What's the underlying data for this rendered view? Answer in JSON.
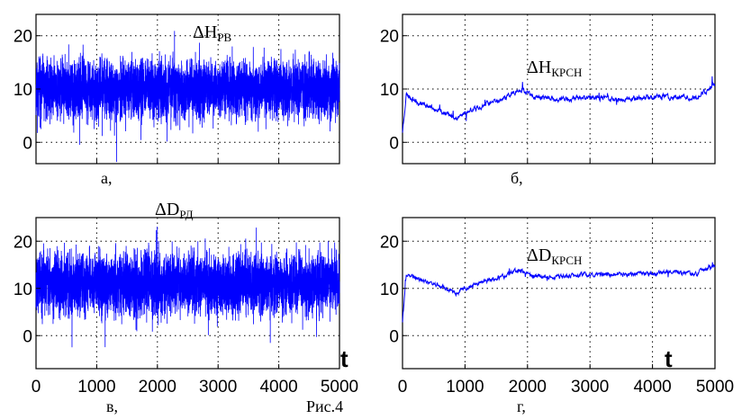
{
  "figure_caption": "Рис.4",
  "chart_data": [
    {
      "id": "a",
      "type": "line",
      "caption": "а,",
      "annotation": {
        "main": "ΔH",
        "sub": "РВ"
      },
      "xlim": [
        0,
        5000
      ],
      "ylim": [
        -4,
        24
      ],
      "yticks": [
        0,
        10,
        20
      ],
      "xticks": [
        0,
        1000,
        2000,
        3000,
        4000,
        5000
      ],
      "show_xticklabels": false,
      "grid": true,
      "color": "#0000ff",
      "series": [
        {
          "kind": "noise",
          "trend": [
            [
              0,
              10
            ],
            [
              5000,
              10
            ]
          ],
          "amplitude": 6,
          "min": -4,
          "max": 21,
          "seed": 11
        }
      ]
    },
    {
      "id": "b",
      "type": "line",
      "caption": "б,",
      "annotation": {
        "main": "ΔH",
        "sub": "КРСН"
      },
      "xlim": [
        0,
        5000
      ],
      "ylim": [
        -4,
        24
      ],
      "yticks": [
        0,
        10,
        20
      ],
      "xticks": [
        0,
        1000,
        2000,
        3000,
        4000,
        5000
      ],
      "show_xticklabels": false,
      "grid": true,
      "color": "#0000ff",
      "series": [
        {
          "kind": "drift",
          "trend": [
            [
              0,
              2
            ],
            [
              60,
              9
            ],
            [
              250,
              7.5
            ],
            [
              500,
              6.5
            ],
            [
              850,
              4.5
            ],
            [
              1000,
              5.5
            ],
            [
              1300,
              7
            ],
            [
              1600,
              8
            ],
            [
              1800,
              9.5
            ],
            [
              1900,
              10
            ],
            [
              2100,
              8.5
            ],
            [
              2600,
              8
            ],
            [
              3000,
              8.5
            ],
            [
              3500,
              8
            ],
            [
              4000,
              8.5
            ],
            [
              4300,
              8.5
            ],
            [
              4700,
              8.5
            ],
            [
              4900,
              10
            ],
            [
              5000,
              11
            ]
          ],
          "amplitude": 0.9,
          "seed": 23
        }
      ]
    },
    {
      "id": "c",
      "type": "line",
      "caption": "в,",
      "annotation": {
        "main": "ΔD",
        "sub": "РД"
      },
      "xlim": [
        0,
        5000
      ],
      "ylim": [
        -7,
        25
      ],
      "yticks": [
        0,
        10,
        20
      ],
      "xticks": [
        0,
        1000,
        2000,
        3000,
        4000,
        5000
      ],
      "show_xticklabels": true,
      "grid": true,
      "axis_mark": "t",
      "color": "#0000ff",
      "series": [
        {
          "kind": "noise",
          "trend": [
            [
              0,
              11
            ],
            [
              5000,
              11
            ]
          ],
          "amplitude": 7,
          "min": -6,
          "max": 24,
          "seed": 37
        }
      ]
    },
    {
      "id": "d",
      "type": "line",
      "caption": "г,",
      "annotation": {
        "main": "ΔD",
        "sub": "КРСН"
      },
      "xlim": [
        0,
        5000
      ],
      "ylim": [
        -7,
        25
      ],
      "yticks": [
        0,
        10,
        20
      ],
      "xticks": [
        0,
        1000,
        2000,
        3000,
        4000,
        5000
      ],
      "show_xticklabels": true,
      "grid": true,
      "axis_mark": "t",
      "color": "#0000ff",
      "series": [
        {
          "kind": "drift",
          "trend": [
            [
              0,
              3
            ],
            [
              60,
              13
            ],
            [
              250,
              12
            ],
            [
              500,
              11
            ],
            [
              850,
              9
            ],
            [
              1000,
              10
            ],
            [
              1300,
              11.5
            ],
            [
              1600,
              12.5
            ],
            [
              1800,
              13.5
            ],
            [
              1900,
              14
            ],
            [
              2100,
              12.5
            ],
            [
              2600,
              12.5
            ],
            [
              3000,
              13
            ],
            [
              3500,
              13
            ],
            [
              4000,
              13
            ],
            [
              4300,
              13.5
            ],
            [
              4700,
              13
            ],
            [
              4900,
              14.5
            ],
            [
              5000,
              15
            ]
          ],
          "amplitude": 0.9,
          "seed": 41
        }
      ]
    }
  ]
}
